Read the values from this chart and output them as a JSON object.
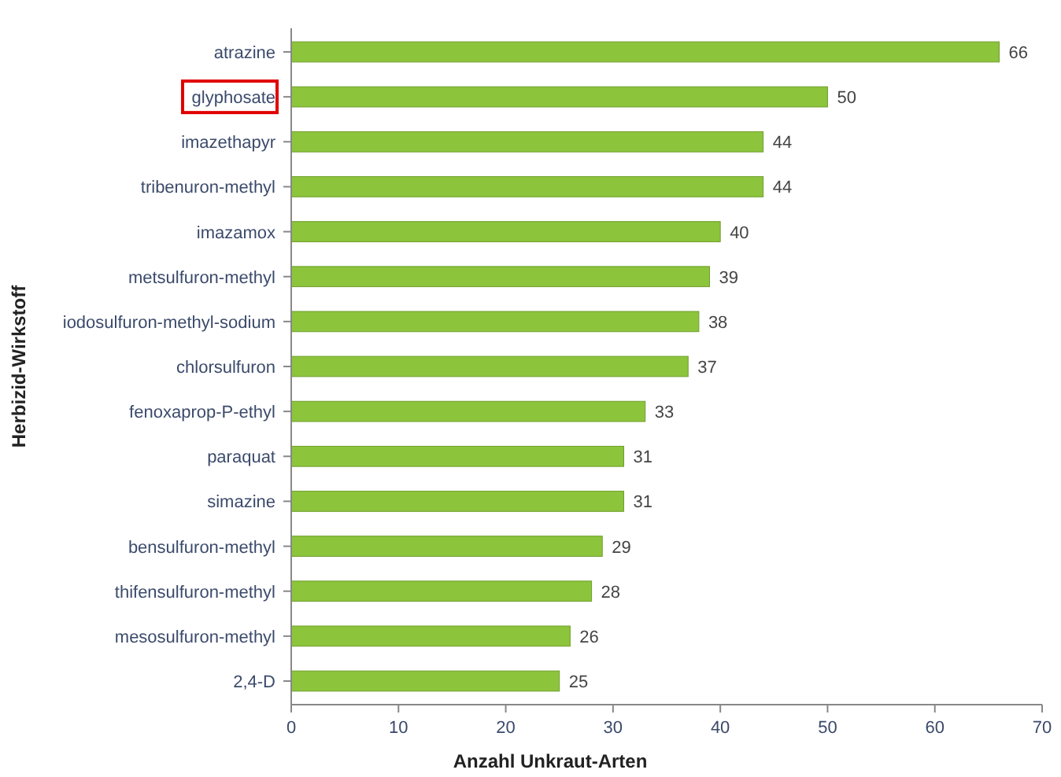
{
  "chart_data": {
    "type": "bar",
    "orientation": "horizontal",
    "xlabel": "Anzahl Unkraut-Arten",
    "ylabel": "Herbizid-Wirkstoff",
    "categories": [
      "atrazine",
      "glyphosate",
      "imazethapyr",
      "tribenuron-methyl",
      "imazamox",
      "metsulfuron-methyl",
      "iodosulfuron-methyl-sodium",
      "chlorsulfuron",
      "fenoxaprop-P-ethyl",
      "paraquat",
      "simazine",
      "bensulfuron-methyl",
      "thifensulfuron-methyl",
      "mesosulfuron-methyl",
      "2,4-D"
    ],
    "values": [
      66,
      50,
      44,
      44,
      40,
      39,
      38,
      37,
      33,
      31,
      31,
      29,
      28,
      26,
      25
    ],
    "color": "#8cc43c",
    "xlim": [
      0,
      70
    ],
    "xticks": [
      0,
      10,
      20,
      30,
      40,
      50,
      60,
      70
    ],
    "data_labels": true,
    "grid": false
  }
}
